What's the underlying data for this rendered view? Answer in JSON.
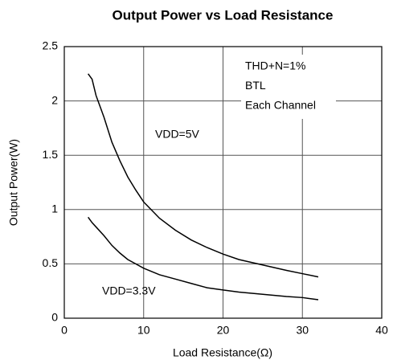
{
  "chart_data": {
    "type": "line",
    "title": "Output Power vs Load Resistance",
    "x_label": "Load Resistance(Ω)",
    "y_label": "Output Power(W)",
    "x": [
      3,
      3.5,
      4,
      5,
      6,
      7,
      8,
      9,
      10,
      12,
      14,
      16,
      18,
      20,
      22,
      25,
      28,
      30,
      32
    ],
    "series": [
      {
        "name": "VDD=5V",
        "color": "#000000",
        "values": [
          2.25,
          2.2,
          2.05,
          1.85,
          1.62,
          1.45,
          1.3,
          1.18,
          1.07,
          0.92,
          0.81,
          0.72,
          0.65,
          0.59,
          0.54,
          0.49,
          0.44,
          0.41,
          0.38
        ]
      },
      {
        "name": "VDD=3.3V",
        "color": "#000000",
        "values": [
          0.93,
          0.88,
          0.84,
          0.76,
          0.67,
          0.6,
          0.54,
          0.5,
          0.46,
          0.4,
          0.36,
          0.32,
          0.28,
          0.26,
          0.24,
          0.22,
          0.2,
          0.19,
          0.17
        ]
      }
    ],
    "annotations": [
      "THD+N=1%",
      "BTL",
      "Each Channel"
    ],
    "xlim": [
      0,
      40
    ],
    "xticks": [
      0,
      10,
      20,
      30,
      40
    ],
    "ylim": [
      0,
      2.5
    ],
    "yticks": [
      0,
      0.5,
      1,
      1.5,
      2,
      2.5
    ],
    "grid": true
  }
}
